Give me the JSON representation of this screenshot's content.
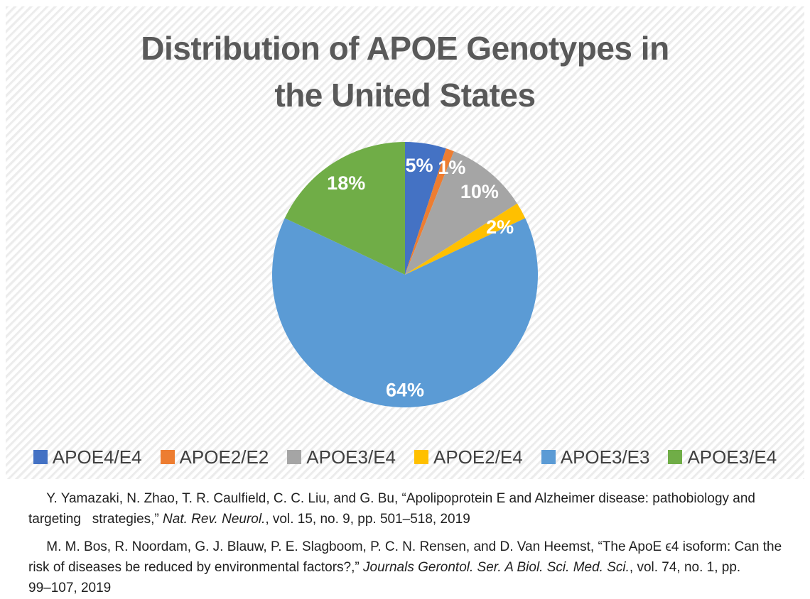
{
  "title": {
    "text": "Distribution of APOE Genotypes in\nthe United States"
  },
  "chart_data": {
    "type": "pie",
    "title": "Distribution of APOE Genotypes in the United States",
    "slices": [
      {
        "label": "APOE4/E4",
        "value": 5,
        "display": "5%",
        "color": "#4472C4"
      },
      {
        "label": "APOE2/E2",
        "value": 1,
        "display": "1%",
        "color": "#ED7D31"
      },
      {
        "label": "APOE3/E4",
        "value": 10,
        "display": "10%",
        "color": "#A5A5A5"
      },
      {
        "label": "APOE2/E4",
        "value": 2,
        "display": "2%",
        "color": "#FFC000"
      },
      {
        "label": "APOE3/E3",
        "value": 64,
        "display": "64%",
        "color": "#5B9BD5"
      },
      {
        "label": "APOE3/E4",
        "value": 18,
        "display": "18%",
        "color": "#70AD47"
      }
    ],
    "start_angle_deg": 0,
    "direction": "clockwise",
    "legend_position": "bottom",
    "data_label_style": "white bold percent labels inside slices",
    "title_color": "#595959",
    "legend_text_color": "#404040"
  },
  "citations": [
    {
      "segments": [
        {
          "text": " Y. Yamazaki, N. Zhao, T. R. Caulfield, C. C. Liu, and G. Bu, “Apolipoprotein E and Alzheimer disease: pathobiology and\ntargeting   strategies,” ",
          "italic": false
        },
        {
          "text": "Nat. Rev. Neurol.",
          "italic": true
        },
        {
          "text": ", vol. 15, no. 9, pp. 501–518, 2019",
          "italic": false
        }
      ]
    },
    {
      "segments": [
        {
          "text": " M. M. Bos, R. Noordam, G. J. Blauw, P. E. Slagboom, P. C. N. Rensen, and D. Van Heemst, “The ApoE ϵ4 isoform: Can the\nrisk of diseases be reduced by environmental factors?,” ",
          "italic": false
        },
        {
          "text": "Journals Gerontol. Ser. A Biol. Sci. Med. Sci.",
          "italic": true
        },
        {
          "text": ", vol. 74, no. 1, pp.\n99–107, 2019",
          "italic": false
        }
      ]
    }
  ]
}
